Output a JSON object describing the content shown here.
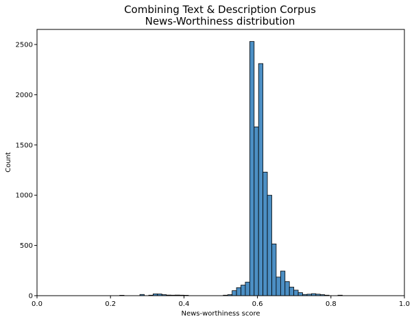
{
  "chart_data": {
    "type": "bar",
    "title": [
      "Combining Text & Description Corpus",
      "News-Worthiness distribution"
    ],
    "xlabel": "News-worthiness score",
    "ylabel": "Count",
    "xlim": [
      0.0,
      1.0
    ],
    "ylim": [
      0,
      2650
    ],
    "xticks": [
      0.0,
      0.2,
      0.4,
      0.6,
      0.8,
      1.0
    ],
    "xtick_labels": [
      "0.0",
      "0.2",
      "0.4",
      "0.6",
      "0.8",
      "1.0"
    ],
    "yticks": [
      0,
      500,
      1000,
      1500,
      2000,
      2500
    ],
    "ytick_labels": [
      "0",
      "500",
      "1000",
      "1500",
      "2000",
      "2500"
    ],
    "bar_color": "#4c8fc4",
    "bar_edge_color": "#000000",
    "grid": false,
    "bins": [
      {
        "x0": 0.225,
        "x1": 0.237,
        "count": 4
      },
      {
        "x0": 0.28,
        "x1": 0.292,
        "count": 12
      },
      {
        "x0": 0.304,
        "x1": 0.316,
        "count": 5
      },
      {
        "x0": 0.316,
        "x1": 0.328,
        "count": 18
      },
      {
        "x0": 0.328,
        "x1": 0.34,
        "count": 17
      },
      {
        "x0": 0.34,
        "x1": 0.352,
        "count": 10
      },
      {
        "x0": 0.352,
        "x1": 0.364,
        "count": 6
      },
      {
        "x0": 0.364,
        "x1": 0.376,
        "count": 5
      },
      {
        "x0": 0.376,
        "x1": 0.388,
        "count": 6
      },
      {
        "x0": 0.388,
        "x1": 0.4,
        "count": 5
      },
      {
        "x0": 0.4,
        "x1": 0.412,
        "count": 4
      },
      {
        "x0": 0.507,
        "x1": 0.519,
        "count": 5
      },
      {
        "x0": 0.519,
        "x1": 0.531,
        "count": 10
      },
      {
        "x0": 0.531,
        "x1": 0.543,
        "count": 50
      },
      {
        "x0": 0.543,
        "x1": 0.555,
        "count": 80
      },
      {
        "x0": 0.555,
        "x1": 0.567,
        "count": 105
      },
      {
        "x0": 0.567,
        "x1": 0.579,
        "count": 135
      },
      {
        "x0": 0.579,
        "x1": 0.591,
        "count": 2530
      },
      {
        "x0": 0.591,
        "x1": 0.603,
        "count": 1680
      },
      {
        "x0": 0.603,
        "x1": 0.615,
        "count": 2310
      },
      {
        "x0": 0.615,
        "x1": 0.627,
        "count": 1230
      },
      {
        "x0": 0.627,
        "x1": 0.639,
        "count": 1000
      },
      {
        "x0": 0.639,
        "x1": 0.651,
        "count": 515
      },
      {
        "x0": 0.651,
        "x1": 0.663,
        "count": 185
      },
      {
        "x0": 0.663,
        "x1": 0.675,
        "count": 245
      },
      {
        "x0": 0.675,
        "x1": 0.687,
        "count": 140
      },
      {
        "x0": 0.687,
        "x1": 0.699,
        "count": 85
      },
      {
        "x0": 0.699,
        "x1": 0.711,
        "count": 55
      },
      {
        "x0": 0.711,
        "x1": 0.723,
        "count": 30
      },
      {
        "x0": 0.723,
        "x1": 0.735,
        "count": 12
      },
      {
        "x0": 0.735,
        "x1": 0.747,
        "count": 15
      },
      {
        "x0": 0.747,
        "x1": 0.759,
        "count": 20
      },
      {
        "x0": 0.759,
        "x1": 0.771,
        "count": 15
      },
      {
        "x0": 0.771,
        "x1": 0.783,
        "count": 10
      },
      {
        "x0": 0.783,
        "x1": 0.795,
        "count": 5
      },
      {
        "x0": 0.819,
        "x1": 0.831,
        "count": 5
      }
    ]
  }
}
